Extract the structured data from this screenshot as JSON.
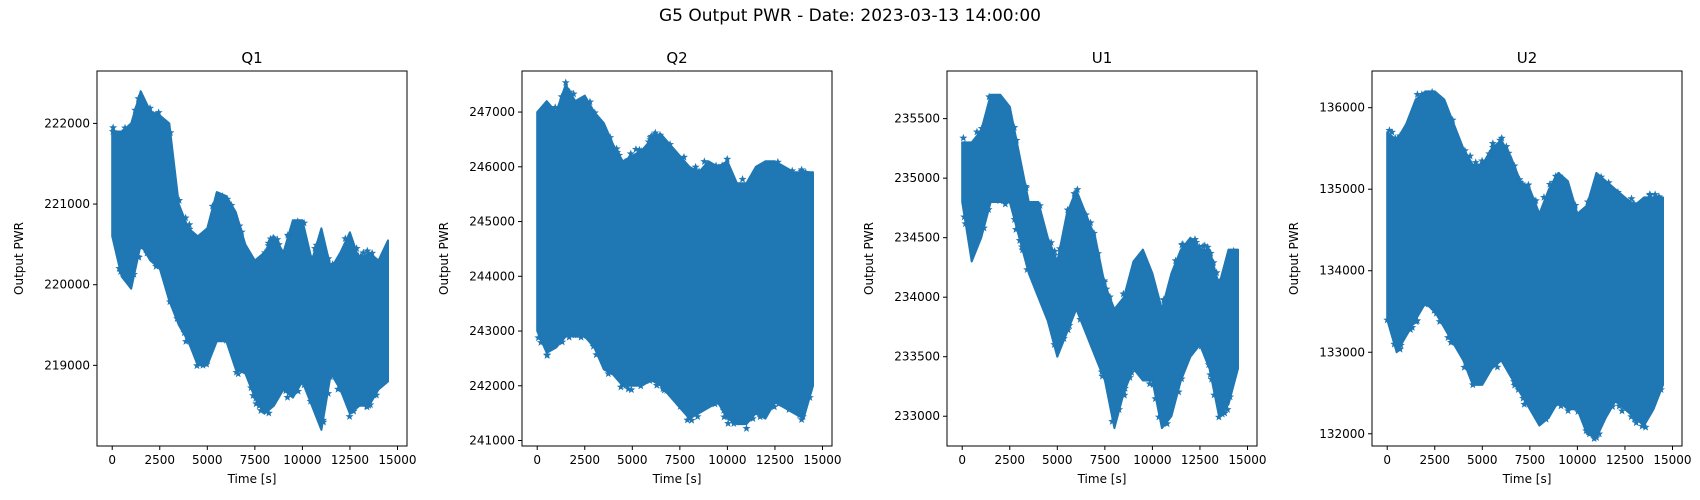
{
  "title": "G5 Output PWR - Date: 2023-03-13 14:00:00",
  "colors": {
    "series": "#1f77b4",
    "axes": "#000000"
  },
  "chart_data": [
    {
      "type": "scatter",
      "title": "Q1",
      "xlabel": "Time [s]",
      "ylabel": "Output PWR",
      "marker": "star",
      "xlim": [
        -800,
        15500
      ],
      "ylim": [
        218000,
        222650
      ],
      "xticks": [
        0,
        2500,
        5000,
        7500,
        10000,
        12500,
        15000
      ],
      "yticks": [
        219000,
        220000,
        221000,
        222000
      ],
      "envelope": {
        "x": [
          0,
          500,
          1000,
          1500,
          2000,
          2500,
          3000,
          3500,
          4000,
          4500,
          5000,
          5500,
          6000,
          6500,
          7000,
          7500,
          8000,
          8500,
          9000,
          9500,
          10000,
          10500,
          11000,
          11500,
          12000,
          12500,
          13000,
          13500,
          14000,
          14500
        ],
        "upper": [
          221900,
          221900,
          222000,
          222400,
          222150,
          222100,
          222000,
          221000,
          220700,
          220600,
          220700,
          221150,
          221100,
          220900,
          220500,
          220300,
          220400,
          220600,
          220400,
          220800,
          220800,
          220300,
          220700,
          220200,
          220400,
          220650,
          220300,
          220400,
          220300,
          220550
        ],
        "lower": [
          220600,
          220100,
          219950,
          220500,
          220300,
          220200,
          219800,
          219500,
          219300,
          219000,
          219000,
          219300,
          219300,
          218950,
          218900,
          218600,
          218400,
          218500,
          218700,
          218600,
          218800,
          218500,
          218200,
          218900,
          218700,
          218400,
          218500,
          218500,
          218700,
          218800
        ]
      }
    },
    {
      "type": "scatter",
      "title": "Q2",
      "xlabel": "Time [s]",
      "ylabel": "Output PWR",
      "marker": "star",
      "xlim": [
        -800,
        15500
      ],
      "ylim": [
        240900,
        247750
      ],
      "xticks": [
        0,
        2500,
        5000,
        7500,
        10000,
        12500,
        15000
      ],
      "yticks": [
        241000,
        242000,
        243000,
        244000,
        245000,
        246000,
        247000
      ],
      "envelope": {
        "x": [
          0,
          500,
          1000,
          1500,
          2000,
          2500,
          3000,
          3500,
          4000,
          4500,
          5000,
          5500,
          6000,
          6500,
          7000,
          7500,
          8000,
          8500,
          9000,
          9500,
          10000,
          10500,
          11000,
          11500,
          12000,
          12500,
          13000,
          13500,
          14000,
          14500
        ],
        "upper": [
          247000,
          247200,
          247000,
          247500,
          247200,
          247300,
          247000,
          246800,
          246400,
          246100,
          246200,
          246300,
          246500,
          246600,
          246400,
          246200,
          246000,
          245900,
          246100,
          246000,
          246100,
          245700,
          245700,
          246000,
          246100,
          246100,
          246000,
          245900,
          245900,
          245900
        ],
        "lower": [
          243000,
          242600,
          242700,
          242900,
          242900,
          242900,
          242700,
          242300,
          242200,
          242000,
          242000,
          242000,
          242100,
          242000,
          241800,
          241600,
          241400,
          241500,
          241600,
          241700,
          241400,
          241300,
          241300,
          241500,
          241400,
          241700,
          241600,
          241500,
          241400,
          242000
        ]
      }
    },
    {
      "type": "scatter",
      "title": "U1",
      "xlabel": "Time [s]",
      "ylabel": "Output PWR",
      "marker": "star",
      "xlim": [
        -800,
        15500
      ],
      "ylim": [
        232750,
        235900
      ],
      "xticks": [
        0,
        2500,
        5000,
        7500,
        10000,
        12500,
        15000
      ],
      "yticks": [
        233000,
        233500,
        234000,
        234500,
        235000,
        235500
      ],
      "envelope": {
        "x": [
          0,
          500,
          1000,
          1500,
          2000,
          2500,
          3000,
          3500,
          4000,
          4500,
          5000,
          5500,
          6000,
          6500,
          7000,
          7500,
          8000,
          8500,
          9000,
          9500,
          10000,
          10500,
          11000,
          11500,
          12000,
          12500,
          13000,
          13500,
          14000,
          14500
        ],
        "upper": [
          235300,
          235300,
          235400,
          235700,
          235700,
          235600,
          235200,
          234800,
          234800,
          234500,
          234300,
          234700,
          234900,
          234700,
          234500,
          234100,
          233900,
          234000,
          234300,
          234400,
          234200,
          233900,
          234200,
          234400,
          234500,
          234400,
          234400,
          234100,
          234400,
          234400
        ],
        "lower": [
          234800,
          234300,
          234500,
          234800,
          234800,
          234800,
          234500,
          234200,
          234000,
          233800,
          233500,
          233700,
          233900,
          233700,
          233500,
          233300,
          232900,
          233200,
          233400,
          233300,
          233300,
          232900,
          233000,
          233300,
          233500,
          233600,
          233400,
          233000,
          233100,
          233400
        ]
      }
    },
    {
      "type": "scatter",
      "title": "U2",
      "xlabel": "Time [s]",
      "ylabel": "Output PWR",
      "marker": "star",
      "xlim": [
        -800,
        15500
      ],
      "ylim": [
        131850,
        136450
      ],
      "xticks": [
        0,
        2500,
        5000,
        7500,
        10000,
        12500,
        15000
      ],
      "yticks": [
        132000,
        133000,
        134000,
        135000,
        136000
      ],
      "envelope": {
        "x": [
          0,
          500,
          1000,
          1500,
          2000,
          2500,
          3000,
          3500,
          4000,
          4500,
          5000,
          5500,
          6000,
          6500,
          7000,
          7500,
          8000,
          8500,
          9000,
          9500,
          10000,
          10500,
          11000,
          11500,
          12000,
          12500,
          13000,
          13500,
          14000,
          14500
        ],
        "upper": [
          135700,
          135600,
          135800,
          136100,
          136200,
          136200,
          136100,
          135800,
          135500,
          135300,
          135300,
          135500,
          135600,
          135400,
          135100,
          135000,
          134700,
          135000,
          135200,
          135100,
          134700,
          134800,
          135200,
          135100,
          135000,
          134900,
          134800,
          134900,
          134900,
          134900
        ],
        "lower": [
          133400,
          133000,
          133200,
          133400,
          133600,
          133500,
          133300,
          133100,
          132900,
          132600,
          132600,
          132800,
          132900,
          132700,
          132500,
          132300,
          132100,
          132200,
          132400,
          132300,
          132300,
          132000,
          131950,
          132200,
          132400,
          132300,
          132200,
          132100,
          132300,
          132600
        ]
      }
    }
  ]
}
